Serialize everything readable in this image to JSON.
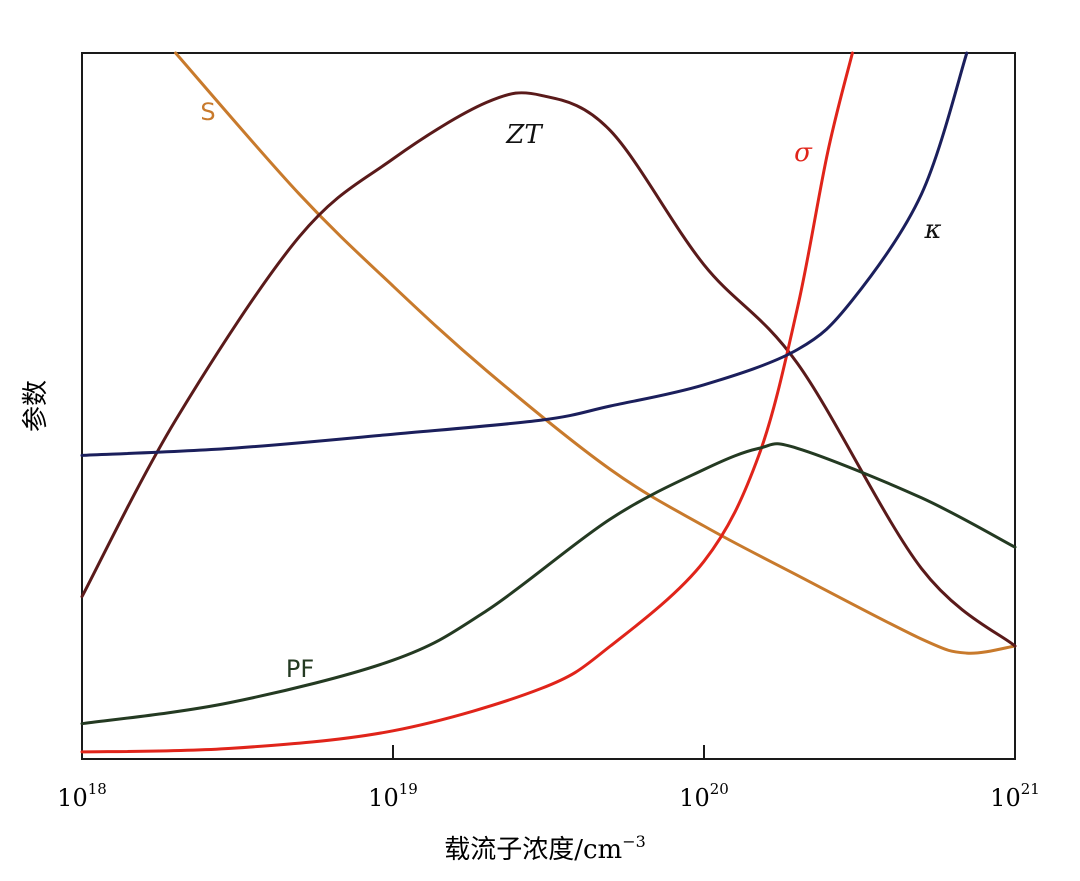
{
  "chart_data": {
    "type": "line",
    "xlabel": "载流子浓度/cm",
    "xlabel_exponent": "−3",
    "ylabel": "参数",
    "x_scale": "log",
    "xlim": [
      1e+18,
      1e+21
    ],
    "ylim": [
      0,
      1
    ],
    "grid": false,
    "legend": "none (labels placed next to curves)",
    "x_ticks": [
      {
        "base": "10",
        "exp": "18",
        "value": 1e+18
      },
      {
        "base": "10",
        "exp": "19",
        "value": 1e+19
      },
      {
        "base": "10",
        "exp": "20",
        "value": 1e+20
      },
      {
        "base": "10",
        "exp": "21",
        "value": 1e+21
      }
    ],
    "series": [
      {
        "name": "S",
        "color": "#c87a2c",
        "label_style": "sans",
        "x": [
          2e+18,
          5e+18,
          1e+19,
          2e+19,
          5e+19,
          1e+20,
          2e+20,
          5e+20,
          7e+20,
          1e+21
        ],
        "y": [
          1.0,
          0.8,
          0.67,
          0.55,
          0.41,
          0.33,
          0.26,
          0.17,
          0.15,
          0.16
        ]
      },
      {
        "name": "ZT",
        "color": "#5a1a1a",
        "label_style": "italic",
        "x": [
          1e+18,
          2e+18,
          5e+18,
          1e+19,
          2e+19,
          3e+19,
          5e+19,
          1e+20,
          2e+20,
          5e+20,
          1e+21
        ],
        "y": [
          0.23,
          0.48,
          0.74,
          0.85,
          0.93,
          0.94,
          0.89,
          0.7,
          0.56,
          0.27,
          0.16
        ]
      },
      {
        "name": "σ",
        "color": "#e0241a",
        "label_style": "italic",
        "x": [
          1e+18,
          3e+18,
          1e+19,
          3e+19,
          5e+19,
          1e+20,
          1.5e+20,
          2e+20,
          2.5e+20,
          3e+20
        ],
        "y": [
          0.01,
          0.015,
          0.04,
          0.1,
          0.16,
          0.28,
          0.43,
          0.64,
          0.86,
          1.0
        ]
      },
      {
        "name": "κ",
        "color": "#1b1f5c",
        "label_style": "italic",
        "x": [
          1e+18,
          3e+18,
          1e+19,
          3e+19,
          5e+19,
          1e+20,
          2e+20,
          3e+20,
          5e+20,
          7e+20
        ],
        "y": [
          0.43,
          0.44,
          0.46,
          0.48,
          0.5,
          0.53,
          0.58,
          0.65,
          0.8,
          1.0
        ]
      },
      {
        "name": "PF",
        "color": "#243a22",
        "label_style": "sans",
        "x": [
          1e+18,
          3e+18,
          1e+19,
          2e+19,
          5e+19,
          1e+20,
          1.5e+20,
          2e+20,
          5e+20,
          1e+21
        ],
        "y": [
          0.05,
          0.08,
          0.14,
          0.21,
          0.34,
          0.41,
          0.44,
          0.44,
          0.37,
          0.3
        ]
      }
    ]
  }
}
